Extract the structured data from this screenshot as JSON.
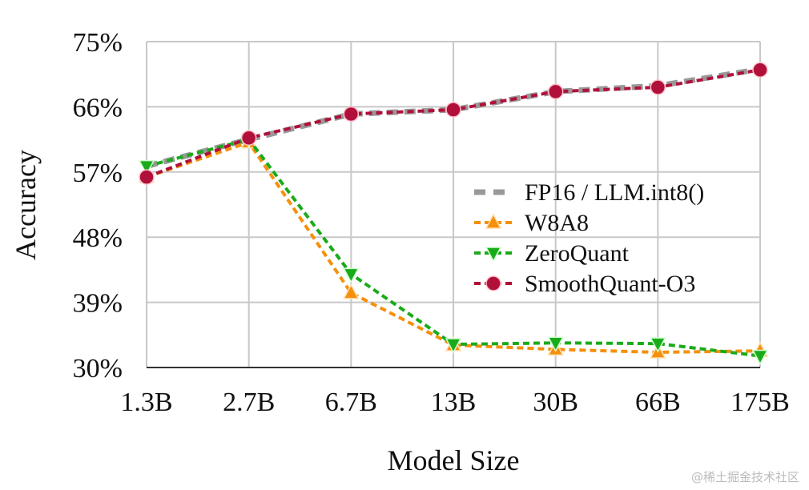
{
  "chart_data": {
    "type": "line",
    "xlabel": "Model Size",
    "ylabel": "Accuracy",
    "categories": [
      "1.3B",
      "2.7B",
      "6.7B",
      "13B",
      "30B",
      "66B",
      "175B"
    ],
    "ylim": [
      30,
      75
    ],
    "yticks": [
      "30%",
      "39%",
      "48%",
      "57%",
      "66%",
      "75%"
    ],
    "ytick_values": [
      30,
      39,
      48,
      57,
      66,
      75
    ],
    "grid": true,
    "legend_position": "center-right",
    "series": [
      {
        "name": "FP16 / LLM.int8()",
        "color": "#999999",
        "marker": "none",
        "values": [
          57.8,
          61.5,
          65.0,
          65.6,
          68.1,
          68.9,
          71.2
        ]
      },
      {
        "name": "W8A8",
        "color": "#f5900c",
        "marker": "triangle-up",
        "values": [
          56.3,
          61.1,
          40.3,
          33.1,
          32.5,
          32.1,
          32.3
        ]
      },
      {
        "name": "ZeroQuant",
        "color": "#1aab1a",
        "marker": "triangle-down",
        "values": [
          57.8,
          61.5,
          42.9,
          33.2,
          33.4,
          33.3,
          31.6
        ]
      },
      {
        "name": "SmoothQuant-O3",
        "color": "#b0103a",
        "marker": "circle",
        "values": [
          56.3,
          61.7,
          65.0,
          65.6,
          68.1,
          68.7,
          71.1
        ]
      }
    ]
  },
  "watermark": "@稀土掘金技术社区"
}
